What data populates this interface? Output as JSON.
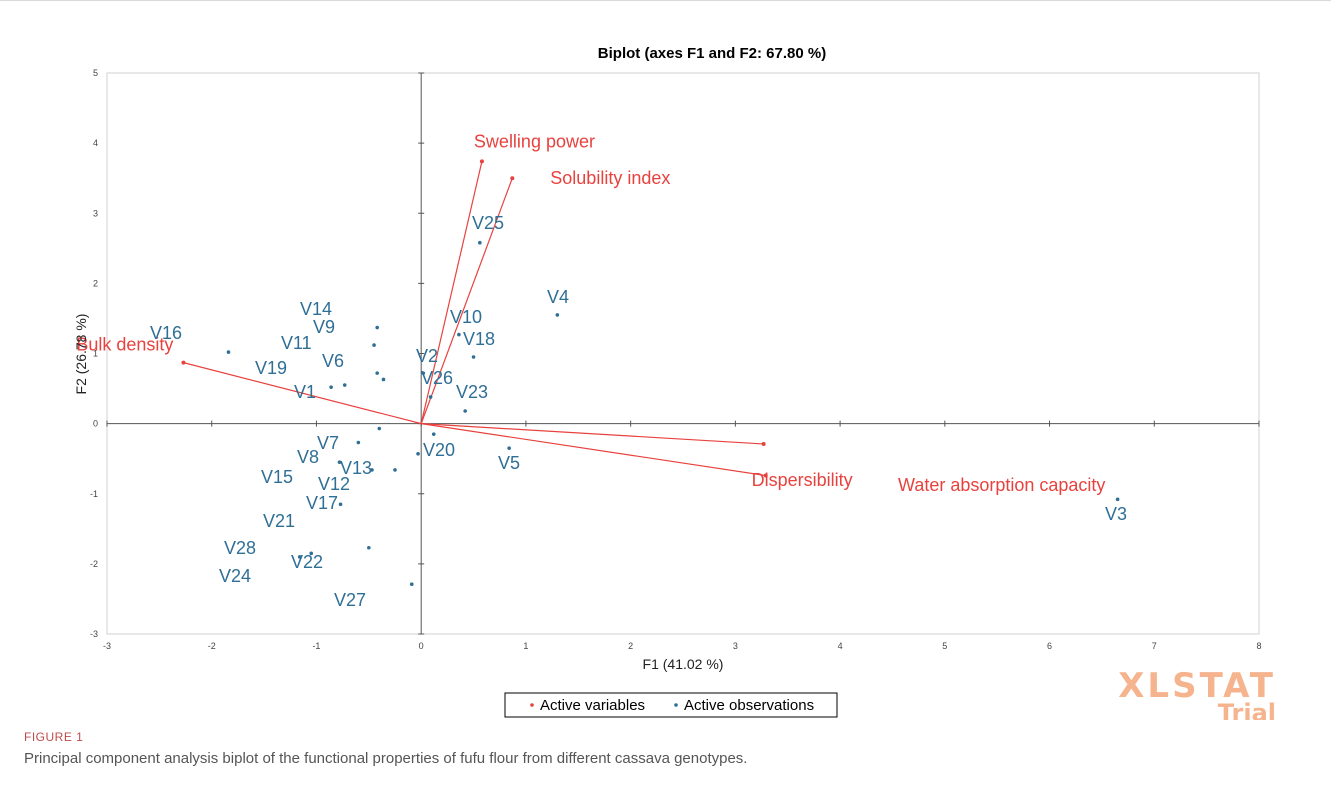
{
  "figure": {
    "label": "FIGURE 1",
    "caption": "Principal component analysis biplot of the functional properties of fufu flour from different cassava genotypes."
  },
  "watermark": {
    "line1": "XLSTAT",
    "line2": "Trial"
  },
  "colors": {
    "variables": "#e8423e",
    "observations": "#2f6f96",
    "axes": "#555555",
    "watermark": "#f5b38e"
  },
  "chart_data": {
    "type": "scatter",
    "title": "Biplot (axes F1 and F2: 67.80 %)",
    "xlabel": "F1 (41.02 %)",
    "ylabel": "F2 (26.78 %)",
    "xlim": [
      -3,
      8
    ],
    "ylim": [
      -3,
      5
    ],
    "xticks": [
      "-3",
      "-2",
      "-1",
      "0",
      "1",
      "2",
      "3",
      "4",
      "5",
      "6",
      "7",
      "8"
    ],
    "yticks": [
      "-3",
      "-2",
      "-1",
      "0",
      "1",
      "2",
      "3",
      "4",
      "5"
    ],
    "grid": false,
    "legend_position": "bottom-center",
    "legend": [
      "Active variables",
      "Active observations"
    ],
    "variables": [
      {
        "name": "Swelling power",
        "x": 0.58,
        "y": 3.74
      },
      {
        "name": "Solubility index",
        "x": 0.87,
        "y": 3.5
      },
      {
        "name": "Bulk density",
        "x": -2.27,
        "y": 0.87
      },
      {
        "name": "Dispersibility",
        "x": 3.27,
        "y": -0.29
      },
      {
        "name": "Water absorption capacity",
        "x": 3.29,
        "y": -0.74
      }
    ],
    "observations": [
      {
        "name": "V25",
        "x": 0.56,
        "y": 2.58
      },
      {
        "name": "V4",
        "x": 1.3,
        "y": 1.55
      },
      {
        "name": "V16",
        "x": -1.84,
        "y": 1.02
      },
      {
        "name": "V14",
        "x": -0.42,
        "y": 1.37
      },
      {
        "name": "V9",
        "x": -0.45,
        "y": 1.12
      },
      {
        "name": "V11",
        "x": -0.42,
        "y": 0.72
      },
      {
        "name": "V19",
        "x": -0.36,
        "y": 0.63
      },
      {
        "name": "V6",
        "x": -0.73,
        "y": 0.55
      },
      {
        "name": "V1",
        "x": -0.86,
        "y": 0.52
      },
      {
        "name": "V10",
        "x": 0.36,
        "y": 1.27
      },
      {
        "name": "V18",
        "x": 0.5,
        "y": 0.95
      },
      {
        "name": "V2",
        "x": 0.02,
        "y": 0.72
      },
      {
        "name": "V26",
        "x": 0.09,
        "y": 0.38
      },
      {
        "name": "V23",
        "x": 0.42,
        "y": 0.18
      },
      {
        "name": "V7",
        "x": -0.4,
        "y": -0.07
      },
      {
        "name": "V20",
        "x": 0.12,
        "y": -0.15
      },
      {
        "name": "V5",
        "x": 0.84,
        "y": -0.35
      },
      {
        "name": "V8",
        "x": -0.6,
        "y": -0.27
      },
      {
        "name": "V13",
        "x": -0.03,
        "y": -0.43
      },
      {
        "name": "V15",
        "x": -0.78,
        "y": -0.55
      },
      {
        "name": "V12",
        "x": -0.47,
        "y": -0.66
      },
      {
        "name": "V17",
        "x": -0.25,
        "y": -0.66
      },
      {
        "name": "V21",
        "x": -0.77,
        "y": -1.15
      },
      {
        "name": "V28",
        "x": -1.05,
        "y": -1.85
      },
      {
        "name": "V22",
        "x": -0.5,
        "y": -1.77
      },
      {
        "name": "V24",
        "x": -1.16,
        "y": -1.9
      },
      {
        "name": "V27",
        "x": -0.09,
        "y": -2.29
      },
      {
        "name": "V3",
        "x": 6.65,
        "y": -1.08
      }
    ]
  }
}
